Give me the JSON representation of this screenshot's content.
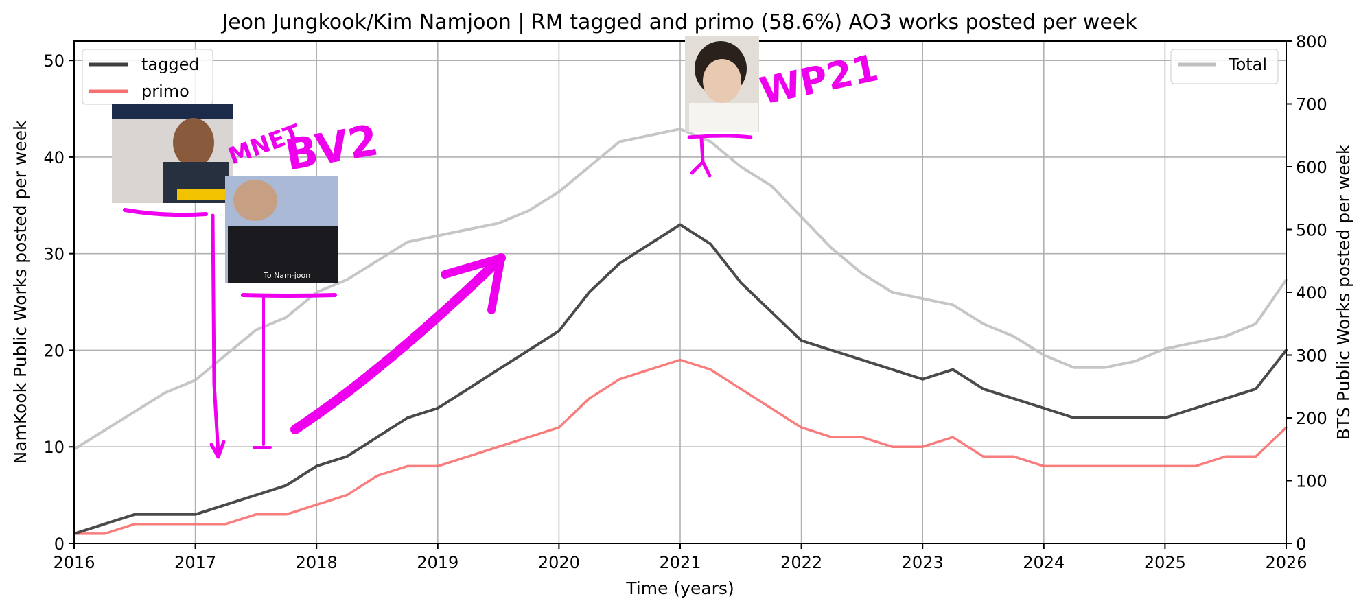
{
  "chart_data": {
    "type": "line",
    "title": "Jeon Jungkook/Kim Namjoon | RM tagged and primo (58.6%) AO3 works posted per week",
    "xlabel": "Time (years)",
    "ylabel_left": "NamKook Public Works posted per week",
    "ylabel_right": "BTS Public Works posted per week",
    "xlim": [
      2016,
      2026
    ],
    "ylim_left": [
      0,
      52
    ],
    "ylim_right": [
      0,
      800
    ],
    "x_ticks": [
      "2016",
      "2017",
      "2018",
      "2019",
      "2020",
      "2021",
      "2022",
      "2023",
      "2024",
      "2025",
      "2026"
    ],
    "y_ticks_left": [
      "0",
      "10",
      "20",
      "30",
      "40",
      "50"
    ],
    "y_ticks_right": [
      "0",
      "100",
      "200",
      "300",
      "400",
      "500",
      "600",
      "700",
      "800"
    ],
    "grid": true,
    "legend_left_position": "upper-left",
    "legend_right_position": "upper-right",
    "series": [
      {
        "name": "tagged",
        "axis": "left",
        "color": "#404040",
        "x": [
          2016.0,
          2016.25,
          2016.5,
          2016.75,
          2017.0,
          2017.25,
          2017.5,
          2017.75,
          2018.0,
          2018.25,
          2018.5,
          2018.75,
          2019.0,
          2019.25,
          2019.5,
          2019.75,
          2020.0,
          2020.25,
          2020.5,
          2020.75,
          2021.0,
          2021.25,
          2021.5,
          2021.75,
          2022.0,
          2022.25,
          2022.5,
          2022.75,
          2023.0,
          2023.25,
          2023.5,
          2023.75,
          2024.0,
          2024.25,
          2024.5,
          2024.75,
          2025.0,
          2025.25,
          2025.5,
          2025.75,
          2026.0
        ],
        "y": [
          1,
          2,
          3,
          3,
          3,
          4,
          5,
          6,
          8,
          9,
          11,
          13,
          14,
          16,
          18,
          20,
          22,
          26,
          29,
          31,
          33,
          31,
          27,
          24,
          21,
          20,
          19,
          18,
          17,
          18,
          16,
          15,
          14,
          13,
          13,
          13,
          13,
          14,
          15,
          16,
          20
        ]
      },
      {
        "name": "primo",
        "axis": "left",
        "color": "#f77070",
        "x": [
          2016.0,
          2016.25,
          2016.5,
          2016.75,
          2017.0,
          2017.25,
          2017.5,
          2017.75,
          2018.0,
          2018.25,
          2018.5,
          2018.75,
          2019.0,
          2019.25,
          2019.5,
          2019.75,
          2020.0,
          2020.25,
          2020.5,
          2020.75,
          2021.0,
          2021.25,
          2021.5,
          2021.75,
          2022.0,
          2022.25,
          2022.5,
          2022.75,
          2023.0,
          2023.25,
          2023.5,
          2023.75,
          2024.0,
          2024.25,
          2024.5,
          2024.75,
          2025.0,
          2025.25,
          2025.5,
          2025.75,
          2026.0
        ],
        "y": [
          1,
          1,
          2,
          2,
          2,
          2,
          3,
          3,
          4,
          5,
          7,
          8,
          8,
          9,
          10,
          11,
          12,
          15,
          17,
          18,
          19,
          18,
          16,
          14,
          12,
          11,
          11,
          10,
          10,
          11,
          9,
          9,
          8,
          8,
          8,
          8,
          8,
          8,
          9,
          9,
          12
        ]
      },
      {
        "name": "Total",
        "axis": "right",
        "color": "#c0c0c0",
        "x": [
          2016.0,
          2016.25,
          2016.5,
          2016.75,
          2017.0,
          2017.25,
          2017.5,
          2017.75,
          2018.0,
          2018.25,
          2018.5,
          2018.75,
          2019.0,
          2019.25,
          2019.5,
          2019.75,
          2020.0,
          2020.25,
          2020.5,
          2020.75,
          2021.0,
          2021.25,
          2021.5,
          2021.75,
          2022.0,
          2022.25,
          2022.5,
          2022.75,
          2023.0,
          2023.25,
          2023.5,
          2023.75,
          2024.0,
          2024.25,
          2024.5,
          2024.75,
          2025.0,
          2025.25,
          2025.5,
          2025.75,
          2026.0
        ],
        "y": [
          150,
          180,
          210,
          240,
          260,
          300,
          340,
          360,
          400,
          420,
          450,
          480,
          490,
          500,
          510,
          530,
          560,
          600,
          640,
          650,
          660,
          640,
          600,
          570,
          520,
          470,
          430,
          400,
          390,
          380,
          350,
          330,
          300,
          280,
          280,
          290,
          310,
          320,
          330,
          350,
          420
        ]
      }
    ]
  },
  "annotations": {
    "labels": [
      "MNET",
      "BV2",
      "WP21"
    ]
  },
  "photos": {
    "caption": "To Nam-joon"
  }
}
